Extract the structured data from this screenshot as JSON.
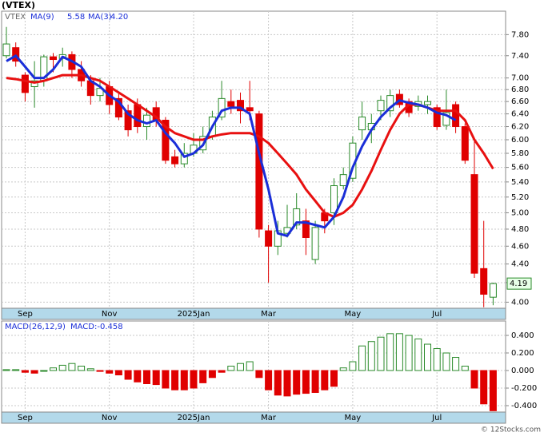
{
  "chart_data": [
    {
      "type": "candlestick",
      "title": "(VTEX)",
      "symbol": "VTEX",
      "categories": [
        null,
        null,
        "Sep",
        null,
        null,
        null,
        null,
        null,
        null,
        null,
        null,
        "Nov",
        null,
        null,
        null,
        null,
        null,
        null,
        null,
        null,
        "2025Jan",
        null,
        null,
        null,
        null,
        null,
        null,
        null,
        "Mar",
        null,
        null,
        null,
        null,
        null,
        null,
        null,
        null,
        "May",
        null,
        null,
        null,
        null,
        null,
        null,
        null,
        null,
        "Jul",
        null,
        null,
        null,
        null,
        null,
        null
      ],
      "open": [
        7.4,
        7.55,
        7.05,
        6.85,
        6.95,
        7.38,
        7.35,
        7.42,
        7.15,
        6.95,
        6.7,
        6.85,
        6.65,
        6.45,
        6.55,
        6.2,
        6.5,
        6.3,
        5.75,
        5.65,
        5.8,
        5.85,
        6.05,
        6.35,
        6.6,
        6.62,
        6.5,
        6.4,
        4.78,
        4.6,
        4.75,
        4.85,
        4.9,
        4.45,
        5.0,
        5.0,
        5.35,
        5.45,
        6.15,
        6.15,
        6.45,
        6.45,
        6.72,
        6.6,
        6.52,
        6.55,
        6.5,
        6.22,
        6.55,
        6.2,
        5.5,
        4.35,
        4.05
      ],
      "high": [
        7.95,
        7.65,
        7.1,
        7.3,
        7.42,
        7.45,
        7.55,
        7.48,
        7.3,
        7.05,
        7.0,
        6.95,
        6.75,
        6.55,
        6.65,
        6.5,
        6.6,
        6.35,
        5.85,
        5.95,
        6.1,
        6.2,
        6.45,
        6.95,
        6.8,
        6.75,
        6.95,
        6.45,
        4.85,
        4.9,
        5.1,
        5.25,
        5.05,
        4.9,
        5.05,
        5.45,
        5.6,
        6.05,
        6.6,
        6.4,
        6.7,
        6.8,
        6.8,
        6.65,
        6.7,
        6.7,
        6.55,
        6.8,
        6.6,
        6.25,
        6.0,
        4.9,
        4.2
      ],
      "low": [
        7.35,
        7.2,
        6.6,
        6.5,
        6.85,
        7.1,
        7.2,
        7.0,
        6.85,
        6.55,
        6.6,
        6.4,
        6.3,
        6.05,
        6.1,
        6.0,
        6.2,
        5.65,
        5.6,
        5.6,
        5.75,
        5.8,
        6.0,
        6.3,
        6.4,
        6.25,
        6.3,
        4.7,
        4.2,
        4.5,
        4.7,
        4.8,
        4.5,
        4.4,
        4.75,
        4.85,
        5.3,
        5.4,
        6.0,
        5.95,
        6.3,
        6.35,
        6.5,
        6.35,
        6.45,
        6.4,
        6.15,
        6.15,
        6.1,
        5.65,
        4.25,
        3.95,
        3.97
      ],
      "close": [
        7.62,
        7.3,
        6.75,
        6.95,
        7.38,
        7.33,
        7.42,
        7.15,
        6.95,
        6.7,
        6.82,
        6.55,
        6.35,
        6.15,
        6.2,
        6.38,
        6.3,
        5.7,
        5.65,
        5.8,
        5.92,
        6.05,
        6.35,
        6.65,
        6.52,
        6.45,
        6.45,
        4.8,
        4.6,
        4.78,
        4.82,
        5.05,
        4.7,
        4.82,
        4.9,
        5.35,
        5.5,
        5.95,
        6.35,
        6.25,
        6.62,
        6.7,
        6.55,
        6.42,
        6.6,
        6.6,
        6.2,
        6.42,
        6.2,
        5.7,
        4.3,
        4.08,
        4.19
      ],
      "up_color": "#2a8a2a",
      "down_color": "#e00000",
      "series": [
        {
          "name": "MA(9)",
          "legend_value": "5.58",
          "color": "#e81010",
          "values": [
            7.0,
            6.98,
            6.95,
            6.92,
            6.95,
            7.0,
            7.05,
            7.05,
            7.05,
            7.0,
            6.95,
            6.85,
            6.75,
            6.65,
            6.55,
            6.45,
            6.35,
            6.2,
            6.1,
            6.05,
            6.0,
            6.0,
            6.05,
            6.08,
            6.1,
            6.1,
            6.1,
            6.05,
            5.95,
            5.8,
            5.65,
            5.5,
            5.3,
            5.15,
            5.0,
            4.95,
            5.0,
            5.1,
            5.3,
            5.55,
            5.85,
            6.15,
            6.4,
            6.55,
            6.55,
            6.5,
            6.45,
            6.45,
            6.45,
            6.3,
            6.0,
            5.8,
            5.58
          ]
        },
        {
          "name": "MA(3)",
          "legend_value": "4.20",
          "color": "#1a2ed8",
          "values": [
            7.3,
            7.4,
            7.2,
            7.0,
            7.0,
            7.15,
            7.38,
            7.3,
            7.2,
            6.95,
            6.85,
            6.7,
            6.6,
            6.4,
            6.3,
            6.25,
            6.3,
            6.1,
            5.95,
            5.75,
            5.8,
            5.92,
            6.2,
            6.45,
            6.5,
            6.5,
            6.4,
            5.8,
            5.3,
            4.75,
            4.72,
            4.88,
            4.88,
            4.85,
            4.82,
            4.95,
            5.2,
            5.6,
            5.9,
            6.15,
            6.35,
            6.5,
            6.62,
            6.58,
            6.55,
            6.5,
            6.42,
            6.38,
            6.3,
            null,
            null,
            null,
            null
          ]
        }
      ],
      "ylim": [
        3.94,
        8.27
      ],
      "log_scale": true,
      "grid": true,
      "yticks": [
        {
          "value": 4.0,
          "label": "4.00"
        },
        {
          "value": 4.2,
          "label": "4.20"
        },
        {
          "value": 4.4,
          "label": "4.40"
        },
        {
          "value": 4.6,
          "label": "4.60"
        },
        {
          "value": 4.8,
          "label": "4.80"
        },
        {
          "value": 5.0,
          "label": "5.00"
        },
        {
          "value": 5.2,
          "label": "5.20"
        },
        {
          "value": 5.4,
          "label": "5.40"
        },
        {
          "value": 5.6,
          "label": "5.60"
        },
        {
          "value": 5.8,
          "label": "5.80"
        },
        {
          "value": 6.0,
          "label": "6.00"
        },
        {
          "value": 6.2,
          "label": "6.20"
        },
        {
          "value": 6.4,
          "label": "6.40"
        },
        {
          "value": 6.6,
          "label": "6.60"
        },
        {
          "value": 6.8,
          "label": "6.80"
        },
        {
          "value": 7.0,
          "label": "7.00"
        },
        {
          "value": 7.4,
          "label": "7.40"
        },
        {
          "value": 7.8,
          "label": "7.80"
        }
      ]
    },
    {
      "type": "bar",
      "name": "MACD(26,12,9)",
      "label": "MACD:-0.458",
      "categories": [
        null,
        null,
        "Sep",
        null,
        null,
        null,
        null,
        null,
        null,
        null,
        null,
        "Nov",
        null,
        null,
        null,
        null,
        null,
        null,
        null,
        null,
        "2025Jan",
        null,
        null,
        null,
        null,
        null,
        null,
        null,
        "Mar",
        null,
        null,
        null,
        null,
        null,
        null,
        null,
        null,
        "May",
        null,
        null,
        null,
        null,
        null,
        null,
        null,
        null,
        "Jul",
        null,
        null,
        null,
        null,
        null,
        null
      ],
      "values": [
        0.01,
        0.01,
        -0.02,
        -0.03,
        0.0,
        0.03,
        0.06,
        0.08,
        0.05,
        0.02,
        -0.01,
        -0.03,
        -0.05,
        -0.1,
        -0.13,
        -0.15,
        -0.16,
        -0.2,
        -0.22,
        -0.22,
        -0.2,
        -0.14,
        -0.08,
        -0.02,
        0.05,
        0.08,
        0.1,
        -0.08,
        -0.22,
        -0.28,
        -0.29,
        -0.27,
        -0.26,
        -0.25,
        -0.22,
        -0.18,
        0.03,
        0.1,
        0.28,
        0.33,
        0.38,
        0.42,
        0.42,
        0.4,
        0.36,
        0.3,
        0.25,
        0.2,
        0.15,
        0.05,
        -0.2,
        -0.38,
        -0.458
      ],
      "pos_color": "#2a8a2a",
      "neg_color": "#e00000",
      "ylim": [
        -0.473,
        0.564
      ],
      "grid": true,
      "yticks": [
        {
          "value": 0.4,
          "label": "0.400"
        },
        {
          "value": 0.2,
          "label": "0.200"
        },
        {
          "value": 0,
          "label": "0.000"
        },
        {
          "value": -0.2,
          "label": "-0.200"
        },
        {
          "value": -0.4,
          "label": "-0.400"
        }
      ]
    }
  ]
}
